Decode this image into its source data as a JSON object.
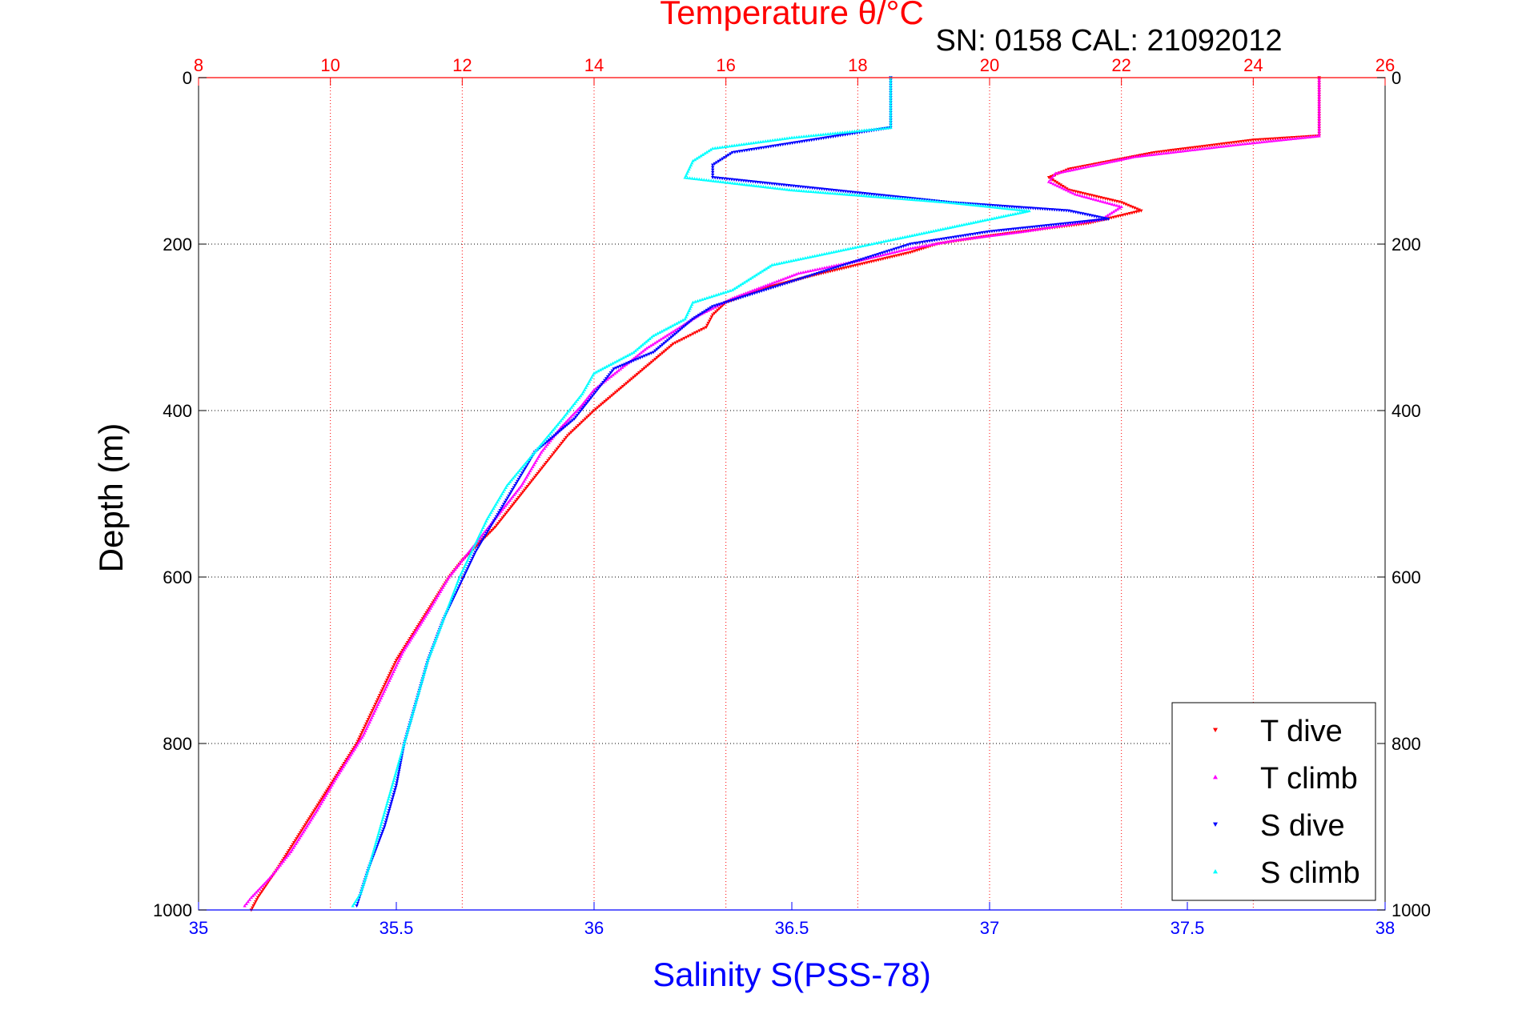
{
  "chart_data": {
    "type": "scatter",
    "title": "Temperature θ/°C",
    "annotation": "SN: 0158  CAL: 21092012",
    "xlabel": "Salinity S(PSS-78)",
    "ylabel": "Depth (m)",
    "x_top": {
      "label": "Temperature θ/°C",
      "lim": [
        8,
        26
      ],
      "ticks": [
        "8",
        "10",
        "12",
        "14",
        "16",
        "18",
        "20",
        "22",
        "24",
        "26"
      ],
      "color": "#ff0000"
    },
    "x_bottom": {
      "label": "Salinity S(PSS-78)",
      "lim": [
        35,
        38
      ],
      "ticks": [
        "35",
        "35.5",
        "36",
        "36.5",
        "37",
        "37.5",
        "38"
      ],
      "color": "#0000ff"
    },
    "y": {
      "lim": [
        0,
        1000
      ],
      "reversed": true,
      "ticks": [
        "0",
        "200",
        "400",
        "600",
        "800",
        "1000"
      ]
    },
    "grid": true,
    "legend": {
      "placement": "bottom-right",
      "entries": [
        "T dive",
        "T climb",
        "S dive",
        "S climb"
      ]
    },
    "series": [
      {
        "name": "T dive",
        "axis": "top",
        "marker": "triangle-down",
        "color": "#ff0000",
        "points": [
          [
            25.0,
            0
          ],
          [
            25.0,
            40
          ],
          [
            25.0,
            70
          ],
          [
            24.0,
            75
          ],
          [
            22.5,
            90
          ],
          [
            21.2,
            110
          ],
          [
            20.9,
            120
          ],
          [
            21.2,
            135
          ],
          [
            22.0,
            150
          ],
          [
            22.3,
            160
          ],
          [
            21.5,
            175
          ],
          [
            20.0,
            190
          ],
          [
            19.2,
            200
          ],
          [
            18.8,
            210
          ],
          [
            18.0,
            225
          ],
          [
            17.2,
            240
          ],
          [
            16.5,
            255
          ],
          [
            16.0,
            270
          ],
          [
            15.8,
            285
          ],
          [
            15.7,
            300
          ],
          [
            15.2,
            320
          ],
          [
            14.9,
            340
          ],
          [
            14.6,
            360
          ],
          [
            14.3,
            380
          ],
          [
            14.0,
            400
          ],
          [
            13.6,
            430
          ],
          [
            13.3,
            460
          ],
          [
            12.9,
            500
          ],
          [
            12.5,
            540
          ],
          [
            12.0,
            580
          ],
          [
            11.8,
            600
          ],
          [
            11.4,
            650
          ],
          [
            11.0,
            700
          ],
          [
            10.7,
            750
          ],
          [
            10.4,
            800
          ],
          [
            10.0,
            850
          ],
          [
            9.6,
            900
          ],
          [
            9.2,
            950
          ],
          [
            8.9,
            985
          ],
          [
            8.8,
            1000
          ]
        ]
      },
      {
        "name": "T climb",
        "axis": "top",
        "marker": "triangle-up",
        "color": "#ff00ff",
        "points": [
          [
            25.0,
            0
          ],
          [
            25.0,
            40
          ],
          [
            25.0,
            70
          ],
          [
            23.8,
            80
          ],
          [
            22.2,
            95
          ],
          [
            21.0,
            115
          ],
          [
            20.9,
            125
          ],
          [
            21.3,
            140
          ],
          [
            22.0,
            155
          ],
          [
            21.7,
            170
          ],
          [
            20.5,
            185
          ],
          [
            19.5,
            195
          ],
          [
            18.8,
            205
          ],
          [
            18.0,
            220
          ],
          [
            17.1,
            235
          ],
          [
            16.6,
            250
          ],
          [
            16.1,
            265
          ],
          [
            15.6,
            285
          ],
          [
            15.2,
            305
          ],
          [
            14.8,
            325
          ],
          [
            14.4,
            350
          ],
          [
            14.0,
            375
          ],
          [
            13.8,
            395
          ],
          [
            13.5,
            420
          ],
          [
            13.2,
            450
          ],
          [
            12.9,
            490
          ],
          [
            12.5,
            530
          ],
          [
            12.1,
            570
          ],
          [
            11.8,
            600
          ],
          [
            11.5,
            640
          ],
          [
            11.1,
            690
          ],
          [
            10.8,
            740
          ],
          [
            10.5,
            790
          ],
          [
            10.1,
            840
          ],
          [
            9.8,
            880
          ],
          [
            9.4,
            930
          ],
          [
            9.1,
            960
          ],
          [
            8.8,
            985
          ],
          [
            8.7,
            995
          ]
        ]
      },
      {
        "name": "S dive",
        "axis": "bottom",
        "marker": "triangle-down",
        "color": "#0000ff",
        "points": [
          [
            36.75,
            0
          ],
          [
            36.75,
            30
          ],
          [
            36.75,
            60
          ],
          [
            36.55,
            75
          ],
          [
            36.35,
            90
          ],
          [
            36.3,
            105
          ],
          [
            36.3,
            120
          ],
          [
            36.6,
            135
          ],
          [
            36.9,
            150
          ],
          [
            37.2,
            160
          ],
          [
            37.3,
            170
          ],
          [
            37.0,
            185
          ],
          [
            36.8,
            200
          ],
          [
            36.7,
            215
          ],
          [
            36.6,
            230
          ],
          [
            36.5,
            245
          ],
          [
            36.4,
            260
          ],
          [
            36.3,
            275
          ],
          [
            36.25,
            290
          ],
          [
            36.2,
            310
          ],
          [
            36.15,
            330
          ],
          [
            36.05,
            350
          ],
          [
            36.0,
            380
          ],
          [
            35.95,
            410
          ],
          [
            35.85,
            450
          ],
          [
            35.8,
            490
          ],
          [
            35.75,
            530
          ],
          [
            35.7,
            570
          ],
          [
            35.67,
            600
          ],
          [
            35.62,
            650
          ],
          [
            35.58,
            700
          ],
          [
            35.55,
            750
          ],
          [
            35.52,
            800
          ],
          [
            35.5,
            850
          ],
          [
            35.47,
            900
          ],
          [
            35.43,
            950
          ],
          [
            35.41,
            980
          ],
          [
            35.4,
            995
          ]
        ]
      },
      {
        "name": "S climb",
        "axis": "bottom",
        "marker": "triangle-up",
        "color": "#00ffff",
        "points": [
          [
            36.75,
            0
          ],
          [
            36.75,
            30
          ],
          [
            36.75,
            60
          ],
          [
            36.5,
            72
          ],
          [
            36.3,
            85
          ],
          [
            36.25,
            100
          ],
          [
            36.23,
            120
          ],
          [
            36.5,
            135
          ],
          [
            36.9,
            150
          ],
          [
            37.1,
            160
          ],
          [
            37.0,
            170
          ],
          [
            36.9,
            180
          ],
          [
            36.75,
            195
          ],
          [
            36.6,
            210
          ],
          [
            36.45,
            225
          ],
          [
            36.4,
            240
          ],
          [
            36.35,
            255
          ],
          [
            36.25,
            270
          ],
          [
            36.23,
            290
          ],
          [
            36.15,
            310
          ],
          [
            36.1,
            330
          ],
          [
            36.0,
            355
          ],
          [
            35.97,
            380
          ],
          [
            35.92,
            410
          ],
          [
            35.85,
            450
          ],
          [
            35.78,
            490
          ],
          [
            35.73,
            530
          ],
          [
            35.69,
            570
          ],
          [
            35.66,
            600
          ],
          [
            35.62,
            650
          ],
          [
            35.58,
            700
          ],
          [
            35.55,
            750
          ],
          [
            35.52,
            800
          ],
          [
            35.49,
            850
          ],
          [
            35.46,
            900
          ],
          [
            35.43,
            950
          ],
          [
            35.41,
            980
          ],
          [
            35.39,
            995
          ]
        ]
      }
    ]
  }
}
